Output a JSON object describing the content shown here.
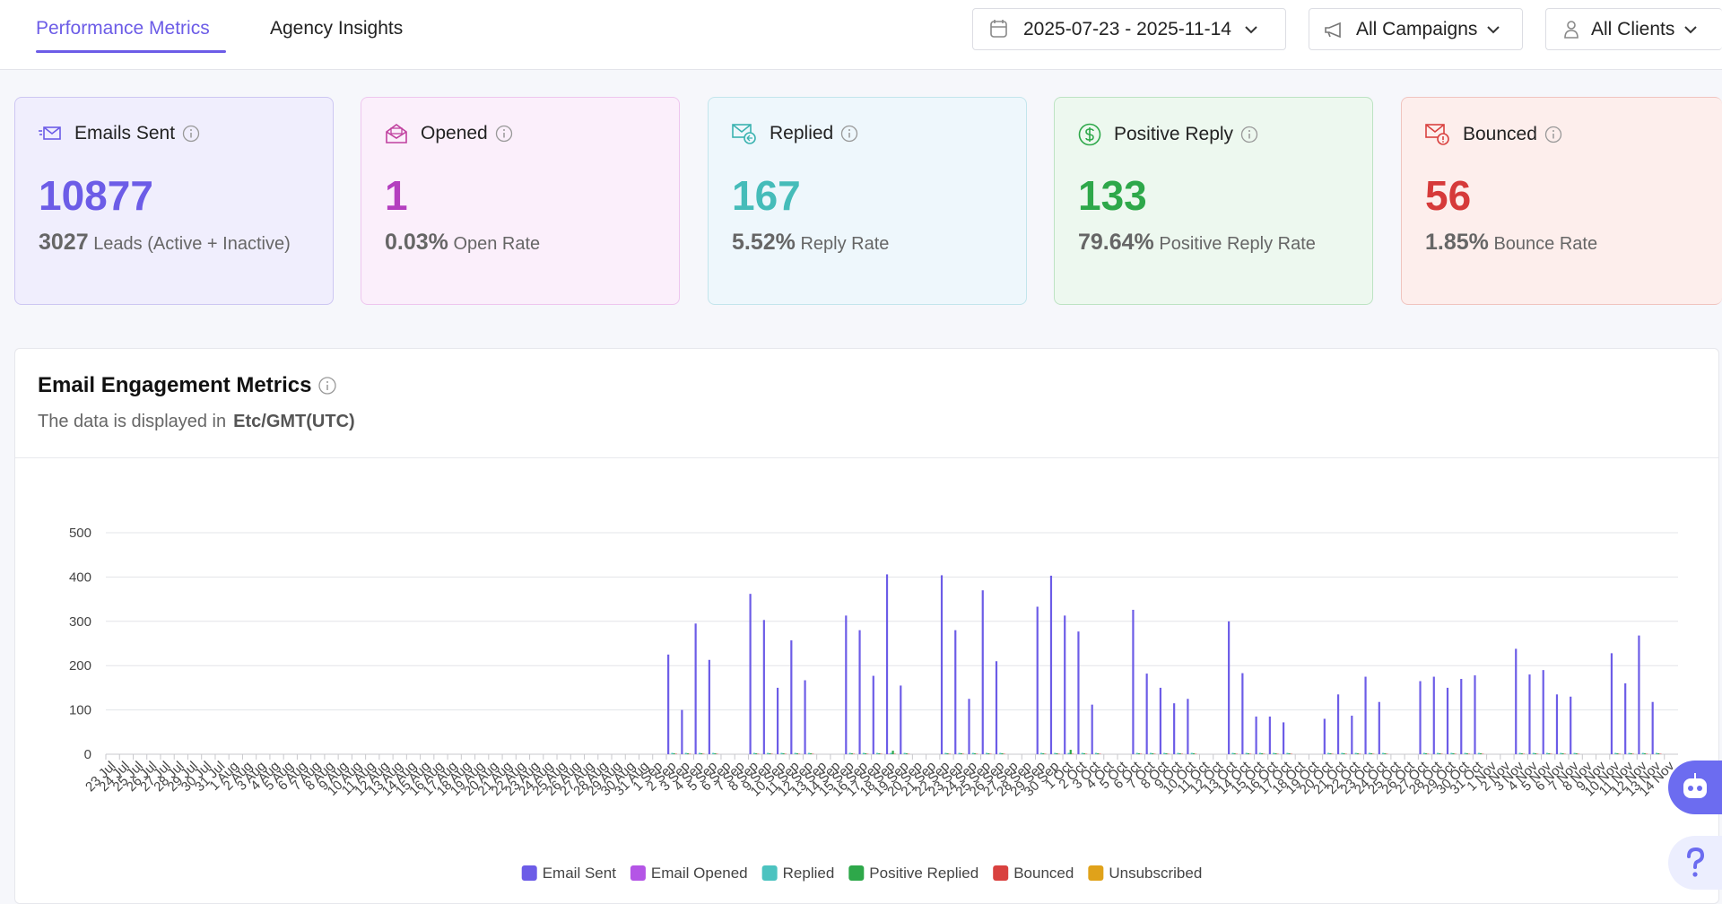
{
  "nav": {
    "tabs": [
      "Performance Metrics",
      "Agency Insights"
    ],
    "filters": [
      "2025-07-23 - 2025-11-14",
      "All Campaigns",
      "All Clients"
    ]
  },
  "cards": [
    {
      "label": "Emails Sent",
      "value": "10877",
      "sub_value": "3027",
      "sub_label": "Leads (Active + Inactive)"
    },
    {
      "label": "Opened",
      "value": "1",
      "sub_value": "0.03%",
      "sub_label": "Open Rate"
    },
    {
      "label": "Replied",
      "value": "167",
      "sub_value": "5.52%",
      "sub_label": "Reply Rate"
    },
    {
      "label": "Positive Reply",
      "value": "133",
      "sub_value": "79.64%",
      "sub_label": "Positive Reply Rate"
    },
    {
      "label": "Bounced",
      "value": "56",
      "sub_value": "1.85%",
      "sub_label": "Bounce Rate"
    }
  ],
  "panel": {
    "title": "Email Engagement Metrics",
    "subtitle": "The data is displayed in",
    "timezone": "Etc/GMT(UTC)"
  },
  "chart_data": {
    "type": "bar",
    "categories": [
      "23 Jul",
      "24 Jul",
      "25 Jul",
      "26 Jul",
      "27 Jul",
      "28 Jul",
      "29 Jul",
      "30 Jul",
      "31 Jul",
      "1 Aug",
      "2 Aug",
      "3 Aug",
      "4 Aug",
      "5 Aug",
      "6 Aug",
      "7 Aug",
      "8 Aug",
      "9 Aug",
      "10 Aug",
      "11 Aug",
      "12 Aug",
      "13 Aug",
      "14 Aug",
      "15 Aug",
      "16 Aug",
      "17 Aug",
      "18 Aug",
      "19 Aug",
      "20 Aug",
      "21 Aug",
      "22 Aug",
      "23 Aug",
      "24 Aug",
      "25 Aug",
      "26 Aug",
      "27 Aug",
      "28 Aug",
      "29 Aug",
      "30 Aug",
      "31 Aug",
      "1 Sep",
      "2 Sep",
      "3 Sep",
      "4 Sep",
      "5 Sep",
      "6 Sep",
      "7 Sep",
      "8 Sep",
      "9 Sep",
      "10 Sep",
      "11 Sep",
      "12 Sep",
      "13 Sep",
      "14 Sep",
      "15 Sep",
      "16 Sep",
      "17 Sep",
      "18 Sep",
      "19 Sep",
      "20 Sep",
      "21 Sep",
      "22 Sep",
      "23 Sep",
      "24 Sep",
      "25 Sep",
      "26 Sep",
      "27 Sep",
      "28 Sep",
      "29 Sep",
      "30 Sep",
      "1 Oct",
      "2 Oct",
      "3 Oct",
      "4 Oct",
      "5 Oct",
      "6 Oct",
      "7 Oct",
      "8 Oct",
      "9 Oct",
      "10 Oct",
      "11 Oct",
      "12 Oct",
      "13 Oct",
      "14 Oct",
      "15 Oct",
      "16 Oct",
      "17 Oct",
      "18 Oct",
      "19 Oct",
      "20 Oct",
      "21 Oct",
      "22 Oct",
      "23 Oct",
      "24 Oct",
      "25 Oct",
      "26 Oct",
      "27 Oct",
      "28 Oct",
      "29 Oct",
      "30 Oct",
      "31 Oct",
      "1 Nov",
      "2 Nov",
      "3 Nov",
      "4 Nov",
      "5 Nov",
      "6 Nov",
      "7 Nov",
      "8 Nov",
      "9 Nov",
      "10 Nov",
      "11 Nov",
      "12 Nov",
      "13 Nov",
      "14 Nov"
    ],
    "series": [
      {
        "name": "Email Sent",
        "color": "#6c5ce7",
        "values": [
          0,
          0,
          0,
          0,
          0,
          0,
          0,
          0,
          0,
          0,
          0,
          0,
          0,
          0,
          0,
          0,
          0,
          0,
          0,
          0,
          0,
          0,
          0,
          0,
          0,
          0,
          0,
          0,
          0,
          0,
          0,
          0,
          0,
          0,
          0,
          0,
          0,
          0,
          0,
          0,
          0,
          225,
          100,
          295,
          213,
          0,
          0,
          362,
          303,
          150,
          257,
          167,
          0,
          0,
          313,
          280,
          177,
          406,
          155,
          0,
          0,
          404,
          280,
          125,
          370,
          210,
          0,
          0,
          333,
          403,
          313,
          277,
          112,
          0,
          0,
          326,
          182,
          150,
          115,
          125,
          0,
          0,
          300,
          183,
          85,
          85,
          72,
          0,
          0,
          80,
          135,
          87,
          175,
          118,
          0,
          0,
          165,
          175,
          150,
          170,
          178,
          0,
          0,
          238,
          180,
          190,
          135,
          130,
          0,
          0,
          228,
          160,
          268,
          118,
          0
        ]
      },
      {
        "name": "Email Opened",
        "color": "#b455e6",
        "values": [
          0,
          0,
          0,
          0,
          0,
          0,
          0,
          0,
          0,
          0,
          0,
          0,
          0,
          0,
          0,
          0,
          0,
          0,
          0,
          0,
          0,
          0,
          0,
          0,
          0,
          0,
          0,
          0,
          0,
          0,
          0,
          0,
          0,
          0,
          0,
          0,
          0,
          0,
          0,
          0,
          0,
          0,
          0,
          0,
          0,
          0,
          0,
          0,
          0,
          0,
          0,
          0,
          0,
          0,
          0,
          0,
          0,
          1,
          0,
          0,
          0,
          0,
          0,
          0,
          0,
          0,
          0,
          0,
          0,
          0,
          0,
          0,
          0,
          0,
          0,
          0,
          0,
          0,
          0,
          0,
          0,
          0,
          0,
          0,
          0,
          0,
          0,
          0,
          0,
          0,
          0,
          0,
          0,
          0,
          0,
          0,
          0,
          0,
          0,
          0,
          0,
          0,
          0,
          0,
          0,
          0,
          0,
          0,
          0,
          0,
          0,
          0,
          0,
          0,
          0
        ]
      },
      {
        "name": "Replied",
        "color": "#4cc3c0",
        "values": [
          0,
          0,
          0,
          0,
          0,
          0,
          0,
          0,
          0,
          0,
          0,
          0,
          0,
          0,
          0,
          0,
          0,
          0,
          0,
          0,
          0,
          0,
          0,
          0,
          0,
          0,
          0,
          0,
          0,
          0,
          0,
          0,
          0,
          0,
          0,
          0,
          0,
          0,
          0,
          0,
          0,
          3,
          3,
          3,
          3,
          0,
          0,
          3,
          3,
          3,
          3,
          3,
          0,
          0,
          3,
          3,
          3,
          3,
          3,
          0,
          0,
          3,
          3,
          3,
          3,
          3,
          0,
          0,
          3,
          3,
          3,
          3,
          3,
          0,
          0,
          3,
          3,
          3,
          3,
          3,
          0,
          0,
          3,
          3,
          3,
          3,
          3,
          0,
          0,
          3,
          3,
          3,
          3,
          3,
          0,
          0,
          3,
          3,
          3,
          3,
          3,
          0,
          0,
          3,
          3,
          3,
          3,
          3,
          0,
          0,
          3,
          3,
          3,
          3,
          0
        ]
      },
      {
        "name": "Positive Replied",
        "color": "#2ea84a",
        "values": [
          0,
          0,
          0,
          0,
          0,
          0,
          0,
          0,
          0,
          0,
          0,
          0,
          0,
          0,
          0,
          0,
          0,
          0,
          0,
          0,
          0,
          0,
          0,
          0,
          0,
          0,
          0,
          0,
          0,
          0,
          0,
          0,
          0,
          0,
          0,
          0,
          0,
          0,
          0,
          0,
          0,
          2,
          2,
          2,
          2,
          0,
          0,
          2,
          2,
          2,
          2,
          2,
          0,
          0,
          2,
          2,
          2,
          8,
          2,
          0,
          0,
          2,
          2,
          2,
          2,
          2,
          0,
          0,
          2,
          2,
          10,
          2,
          2,
          0,
          0,
          2,
          2,
          2,
          2,
          2,
          0,
          0,
          2,
          2,
          2,
          2,
          2,
          0,
          0,
          2,
          2,
          2,
          2,
          2,
          0,
          0,
          2,
          2,
          2,
          2,
          2,
          0,
          0,
          2,
          2,
          2,
          2,
          2,
          0,
          0,
          2,
          2,
          2,
          2,
          0
        ]
      },
      {
        "name": "Bounced",
        "color": "#d9413f",
        "values": [
          0,
          0,
          0,
          0,
          0,
          0,
          0,
          0,
          0,
          0,
          0,
          0,
          0,
          0,
          0,
          0,
          0,
          0,
          0,
          0,
          0,
          0,
          0,
          0,
          0,
          0,
          0,
          0,
          0,
          0,
          0,
          0,
          0,
          0,
          0,
          0,
          0,
          0,
          0,
          0,
          0,
          1,
          1,
          1,
          1,
          0,
          0,
          1,
          1,
          1,
          1,
          1,
          0,
          0,
          1,
          1,
          1,
          1,
          1,
          0,
          0,
          1,
          1,
          1,
          1,
          1,
          0,
          0,
          1,
          1,
          1,
          1,
          1,
          0,
          0,
          1,
          1,
          1,
          1,
          1,
          0,
          0,
          1,
          1,
          1,
          1,
          1,
          0,
          0,
          1,
          1,
          1,
          1,
          1,
          0,
          0,
          1,
          1,
          1,
          1,
          1,
          0,
          0,
          1,
          1,
          1,
          1,
          1,
          0,
          0,
          1,
          1,
          1,
          1,
          0
        ]
      },
      {
        "name": "Unsubscribed",
        "color": "#e0a21a",
        "values": [
          0,
          0,
          0,
          0,
          0,
          0,
          0,
          0,
          0,
          0,
          0,
          0,
          0,
          0,
          0,
          0,
          0,
          0,
          0,
          0,
          0,
          0,
          0,
          0,
          0,
          0,
          0,
          0,
          0,
          0,
          0,
          0,
          0,
          0,
          0,
          0,
          0,
          0,
          0,
          0,
          0,
          0,
          0,
          0,
          0,
          0,
          0,
          0,
          0,
          0,
          0,
          0,
          0,
          0,
          0,
          0,
          0,
          0,
          0,
          0,
          0,
          0,
          0,
          0,
          0,
          0,
          0,
          0,
          0,
          0,
          0,
          0,
          0,
          0,
          0,
          0,
          0,
          0,
          0,
          0,
          0,
          0,
          0,
          0,
          0,
          0,
          0,
          0,
          0,
          0,
          0,
          0,
          0,
          0,
          0,
          0,
          0,
          0,
          0,
          0,
          0,
          0,
          0,
          0,
          0,
          0,
          0,
          0,
          0,
          0,
          0,
          0,
          0,
          0,
          0
        ]
      }
    ],
    "ylim": [
      0,
      500
    ],
    "yticks": [
      0,
      100,
      200,
      300,
      400,
      500
    ],
    "grid": true,
    "legend": "bottom"
  }
}
